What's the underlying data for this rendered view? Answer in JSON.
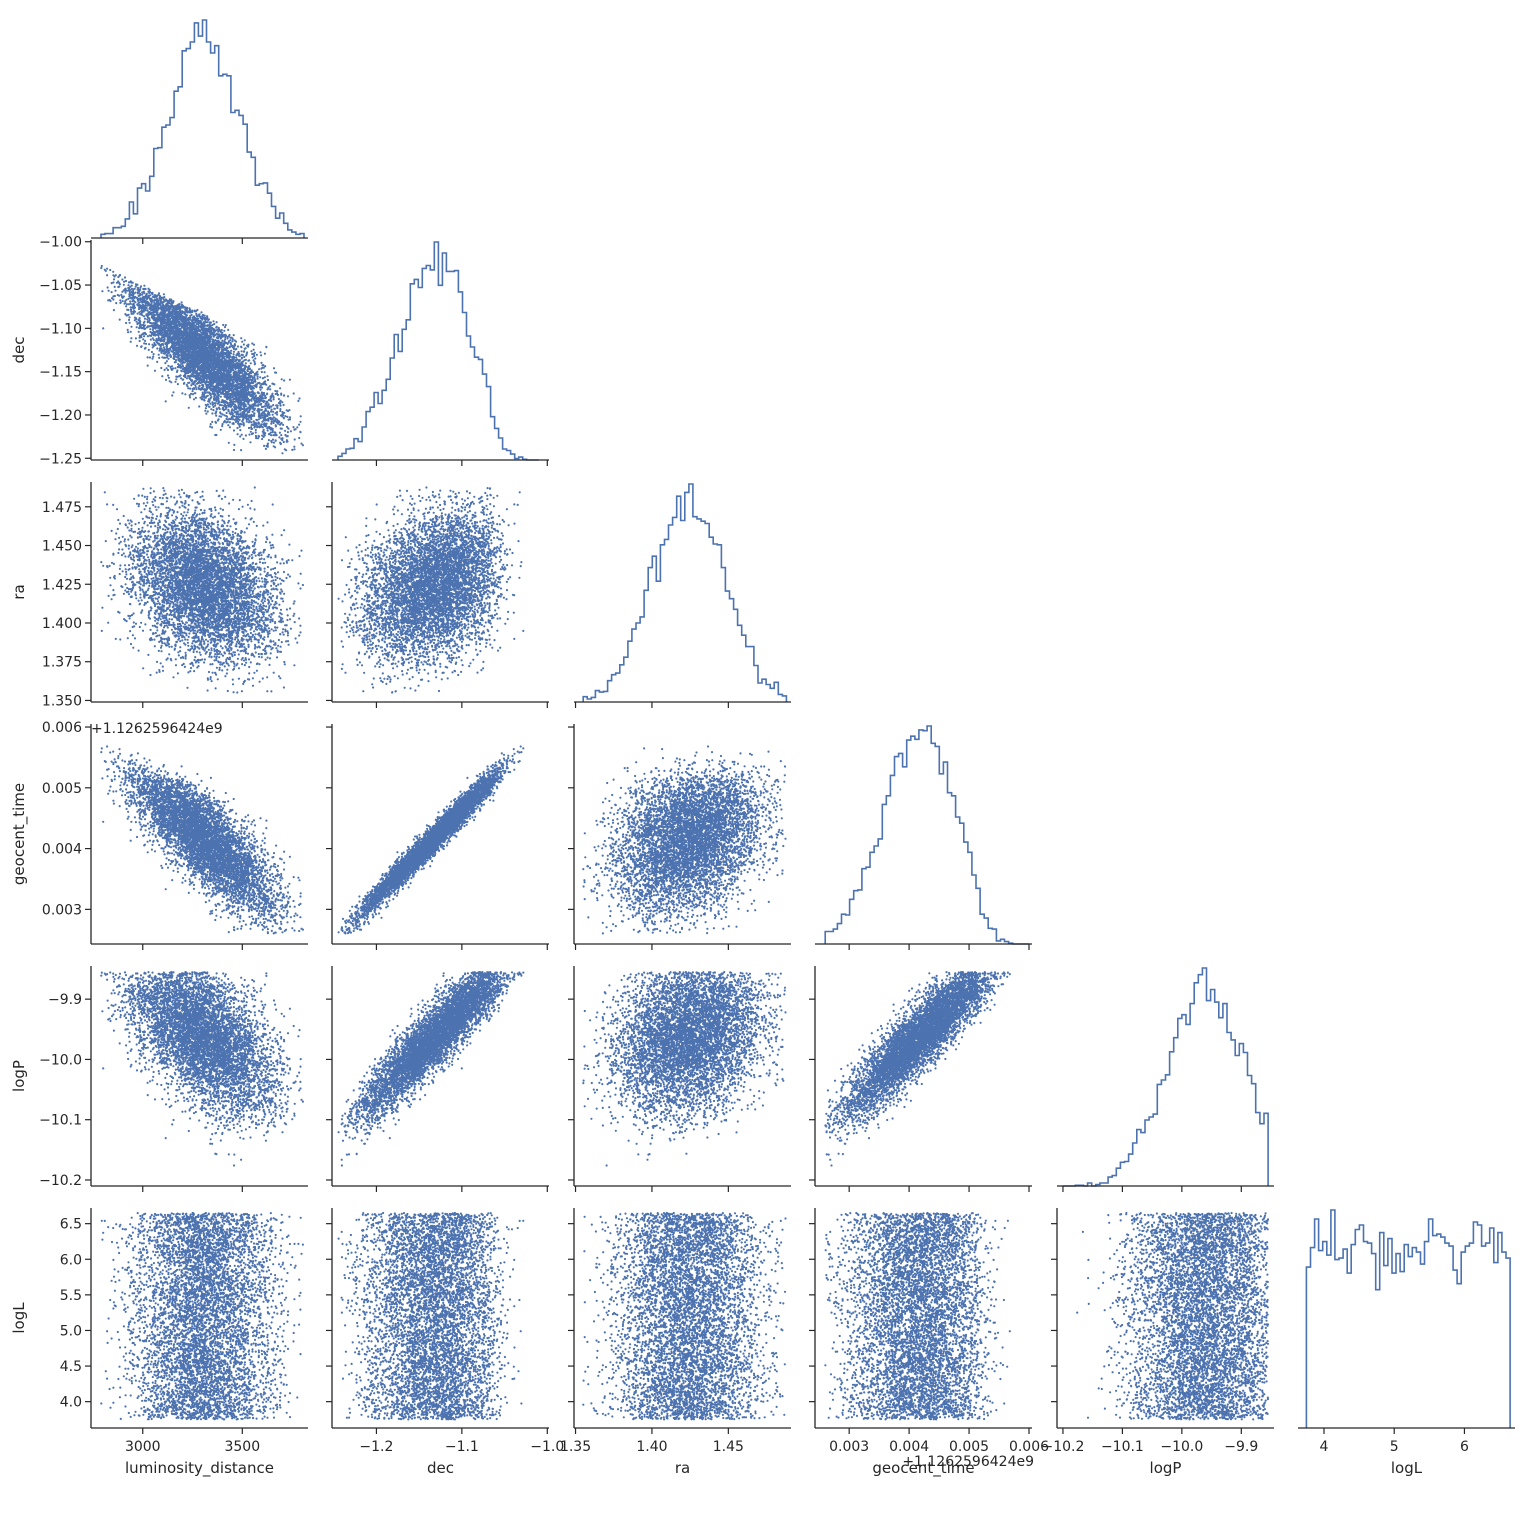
{
  "chart_data": {
    "type": "scatter",
    "title": "",
    "colors": {
      "points": "#4c72b0",
      "hist": "#4c72b0",
      "axes": "#262626"
    },
    "histtype": "step",
    "corner": true,
    "parameters": [
      {
        "name": "luminosity_distance",
        "range": [
          2740,
          3830
        ],
        "ticks": [
          3000,
          3500
        ],
        "tick_labels": [
          "3000",
          "3500"
        ],
        "offset_text": ""
      },
      {
        "name": "dec",
        "range": [
          -1.252,
          -0.998
        ],
        "ticks": [
          -1.25,
          -1.2,
          -1.15,
          -1.1,
          -1.05,
          -1.0
        ],
        "tick_labels": [
          "−1.25",
          "−1.20",
          "−1.15",
          "−1.10",
          "−1.05",
          "−1.00"
        ],
        "x_tick_labels": [
          "−1.2",
          "−1.1",
          "−1.0"
        ],
        "x_ticks": [
          -1.2,
          -1.1,
          -1.0
        ],
        "offset_text": ""
      },
      {
        "name": "ra",
        "range": [
          1.349,
          1.491
        ],
        "ticks": [
          1.35,
          1.375,
          1.4,
          1.425,
          1.45,
          1.475
        ],
        "tick_labels": [
          "1.350",
          "1.375",
          "1.400",
          "1.425",
          "1.450",
          "1.475"
        ],
        "x_ticks": [
          1.35,
          1.4,
          1.45
        ],
        "x_tick_labels": [
          "1.35",
          "1.40",
          "1.45"
        ],
        "offset_text": ""
      },
      {
        "name": "geocent_time",
        "range": [
          0.00243,
          0.00605
        ],
        "ticks": [
          0.003,
          0.004,
          0.005,
          0.006
        ],
        "tick_labels": [
          "0.003",
          "0.004",
          "0.005",
          "0.006"
        ],
        "offset_text": "+1.1262596424e9"
      },
      {
        "name": "logP",
        "range": [
          -10.21,
          -9.845
        ],
        "ticks": [
          -10.2,
          -10.1,
          -10.0,
          -9.9
        ],
        "tick_labels": [
          "−10.2",
          "−10.1",
          "−10.0",
          "−9.9"
        ],
        "offset_text": ""
      },
      {
        "name": "logL",
        "range": [
          3.63,
          6.72
        ],
        "ticks": [
          4.0,
          4.5,
          5.0,
          5.5,
          6.0,
          6.5
        ],
        "tick_labels": [
          "4.0",
          "4.5",
          "5.0",
          "5.5",
          "6.0",
          "6.5"
        ],
        "x_ticks": [
          4,
          5,
          6
        ],
        "x_tick_labels": [
          "4",
          "5",
          "6"
        ],
        "offset_text": ""
      }
    ],
    "marginals": [
      {
        "param": "luminosity_distance",
        "mean": 3300,
        "sd": 190,
        "lo": 2790,
        "hi": 3810
      },
      {
        "param": "dec",
        "mean": -1.13,
        "sd": 0.045,
        "lo": -1.245,
        "hi": -1.01
      },
      {
        "param": "ra",
        "mean": 1.425,
        "sd": 0.024,
        "lo": 1.355,
        "hi": 1.488
      },
      {
        "param": "geocent_time",
        "mean": 0.0042,
        "sd": 0.00065,
        "lo": 0.0026,
        "hi": 0.006
      },
      {
        "param": "logP",
        "mean": -9.96,
        "sd": 0.065,
        "lo": -10.2,
        "hi": -9.855
      },
      {
        "param": "logL",
        "mean": 5.35,
        "sd": 0.55,
        "lo": 3.75,
        "hi": 6.65
      }
    ],
    "samples_note": "",
    "n_samples": 12000,
    "correlations": {
      "luminosity_distance|dec": -0.85,
      "luminosity_distance|ra": -0.3,
      "luminosity_distance|geocent_time": -0.82,
      "luminosity_distance|logP": -0.6,
      "luminosity_distance|logL": 0.05,
      "dec|ra": 0.3,
      "dec|geocent_time": 0.99,
      "dec|logP": 0.96,
      "dec|logL": 0.0,
      "ra|geocent_time": 0.3,
      "ra|logP": 0.25,
      "ra|logL": 0.0,
      "geocent_time|logP": 0.95,
      "geocent_time|logL": 0.0,
      "logP|logL": 0.15
    },
    "xlabel": "",
    "ylabel": "",
    "grid": false,
    "legend": "none"
  }
}
